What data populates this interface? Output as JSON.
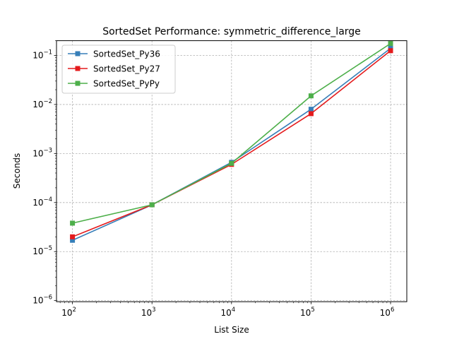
{
  "chart_data": {
    "type": "line",
    "title": "SortedSet Performance: symmetric_difference_large",
    "xlabel": "List Size",
    "ylabel": "Seconds",
    "xscale": "log",
    "yscale": "log",
    "xlim": [
      63,
      1600000
    ],
    "ylim": [
      9.5e-07,
      0.2
    ],
    "grid": true,
    "legend_position": "top-left",
    "x": [
      100,
      1000,
      10000,
      100000,
      1000000
    ],
    "x_tick_labels": [
      {
        "base": "10",
        "exp": "2"
      },
      {
        "base": "10",
        "exp": "3"
      },
      {
        "base": "10",
        "exp": "4"
      },
      {
        "base": "10",
        "exp": "5"
      },
      {
        "base": "10",
        "exp": "6"
      }
    ],
    "y_tick_labels": [
      {
        "base": "10",
        "exp": "−6"
      },
      {
        "base": "10",
        "exp": "−5"
      },
      {
        "base": "10",
        "exp": "−4"
      },
      {
        "base": "10",
        "exp": "−3"
      },
      {
        "base": "10",
        "exp": "−2"
      },
      {
        "base": "10",
        "exp": "−1"
      }
    ],
    "series": [
      {
        "name": "SortedSet_Py36",
        "color": "#377eb8",
        "marker": "square",
        "values": [
          1.7e-05,
          9e-05,
          0.00066,
          0.008,
          0.14
        ]
      },
      {
        "name": "SortedSet_Py27",
        "color": "#e41a1c",
        "marker": "square",
        "values": [
          2e-05,
          9e-05,
          0.0006,
          0.0065,
          0.125
        ]
      },
      {
        "name": "SortedSet_PyPy",
        "color": "#4daf4a",
        "marker": "square",
        "values": [
          3.8e-05,
          9e-05,
          0.00063,
          0.015,
          0.175
        ]
      }
    ]
  }
}
